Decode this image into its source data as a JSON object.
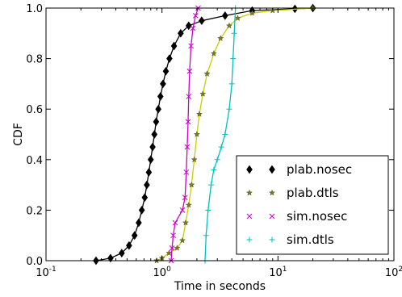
{
  "chart_data": {
    "type": "line",
    "xlabel": "Time in seconds",
    "ylabel": "CDF",
    "xscale": "log",
    "xlim": [
      0.1,
      100
    ],
    "ylim": [
      0.0,
      1.0
    ],
    "grid": false,
    "legend_position": "bottom-right",
    "x_ticks": [
      {
        "value": 0.1,
        "base": "10",
        "exp": "-1"
      },
      {
        "value": 1,
        "base": "10",
        "exp": "0"
      },
      {
        "value": 10,
        "base": "10",
        "exp": "1"
      },
      {
        "value": 100,
        "base": "10",
        "exp": "2"
      }
    ],
    "y_ticks": [
      {
        "value": 0.0,
        "label": "0.0"
      },
      {
        "value": 0.2,
        "label": "0.2"
      },
      {
        "value": 0.4,
        "label": "0.4"
      },
      {
        "value": 0.6,
        "label": "0.6"
      },
      {
        "value": 0.8,
        "label": "0.8"
      },
      {
        "value": 1.0,
        "label": "1.0"
      }
    ],
    "series": [
      {
        "name": "plab.nosec",
        "color": "#000000",
        "marker": "diamond",
        "points": [
          [
            0.27,
            0.0
          ],
          [
            0.36,
            0.01
          ],
          [
            0.45,
            0.03
          ],
          [
            0.52,
            0.06
          ],
          [
            0.58,
            0.1
          ],
          [
            0.63,
            0.15
          ],
          [
            0.67,
            0.2
          ],
          [
            0.71,
            0.25
          ],
          [
            0.74,
            0.3
          ],
          [
            0.77,
            0.35
          ],
          [
            0.8,
            0.4
          ],
          [
            0.83,
            0.45
          ],
          [
            0.86,
            0.5
          ],
          [
            0.89,
            0.55
          ],
          [
            0.93,
            0.6
          ],
          [
            0.97,
            0.65
          ],
          [
            1.02,
            0.7
          ],
          [
            1.08,
            0.75
          ],
          [
            1.16,
            0.8
          ],
          [
            1.27,
            0.85
          ],
          [
            1.45,
            0.9
          ],
          [
            1.7,
            0.93
          ],
          [
            2.2,
            0.95
          ],
          [
            3.5,
            0.97
          ],
          [
            6,
            0.99
          ],
          [
            14,
            0.997
          ],
          [
            20,
            1.0
          ]
        ]
      },
      {
        "name": "plab.dtls",
        "color": "#cccc00",
        "marker": "star",
        "points": [
          [
            0.9,
            0.0
          ],
          [
            1.0,
            0.01
          ],
          [
            1.15,
            0.03
          ],
          [
            1.35,
            0.05
          ],
          [
            1.5,
            0.08
          ],
          [
            1.6,
            0.15
          ],
          [
            1.7,
            0.22
          ],
          [
            1.8,
            0.3
          ],
          [
            1.9,
            0.4
          ],
          [
            2.0,
            0.5
          ],
          [
            2.1,
            0.58
          ],
          [
            2.25,
            0.66
          ],
          [
            2.45,
            0.74
          ],
          [
            2.8,
            0.82
          ],
          [
            3.2,
            0.88
          ],
          [
            3.8,
            0.93
          ],
          [
            4.5,
            0.96
          ],
          [
            6,
            0.98
          ],
          [
            9,
            0.99
          ],
          [
            20,
            1.0
          ]
        ]
      },
      {
        "name": "sim.nosec",
        "color": "#cc00cc",
        "marker": "x",
        "points": [
          [
            1.2,
            0.0
          ],
          [
            1.22,
            0.05
          ],
          [
            1.25,
            0.1
          ],
          [
            1.3,
            0.15
          ],
          [
            1.5,
            0.2
          ],
          [
            1.58,
            0.25
          ],
          [
            1.62,
            0.35
          ],
          [
            1.65,
            0.45
          ],
          [
            1.68,
            0.55
          ],
          [
            1.7,
            0.65
          ],
          [
            1.73,
            0.75
          ],
          [
            1.78,
            0.85
          ],
          [
            1.85,
            0.92
          ],
          [
            1.95,
            0.97
          ],
          [
            2.05,
            1.0
          ]
        ]
      },
      {
        "name": "sim.dtls",
        "color": "#00c0c0",
        "marker": "plus",
        "points": [
          [
            2.35,
            0.0
          ],
          [
            2.4,
            0.1
          ],
          [
            2.5,
            0.2
          ],
          [
            2.65,
            0.3
          ],
          [
            2.8,
            0.36
          ],
          [
            3.0,
            0.4
          ],
          [
            3.25,
            0.45
          ],
          [
            3.5,
            0.5
          ],
          [
            3.8,
            0.6
          ],
          [
            4.0,
            0.7
          ],
          [
            4.1,
            0.8
          ],
          [
            4.2,
            0.9
          ],
          [
            4.3,
            1.0
          ]
        ]
      }
    ]
  }
}
